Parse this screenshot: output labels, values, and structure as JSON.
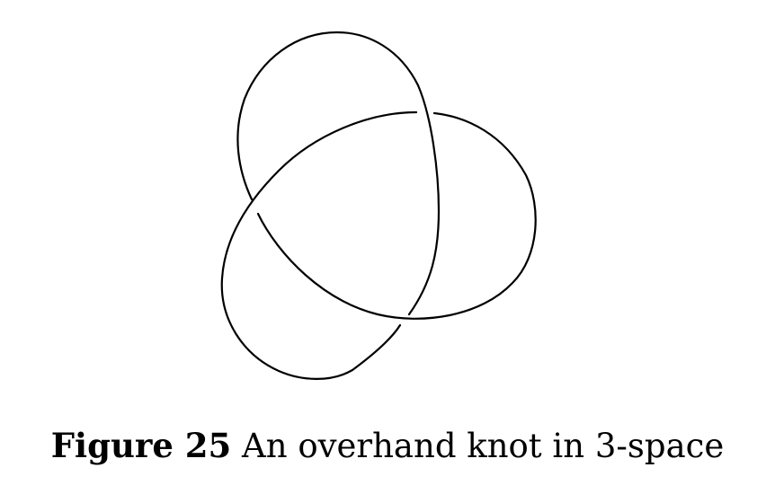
{
  "figure": {
    "label": "Figure 25",
    "caption": "An overhand knot in 3-space"
  },
  "colors": {
    "stroke": "#000000",
    "background": "#ffffff"
  }
}
